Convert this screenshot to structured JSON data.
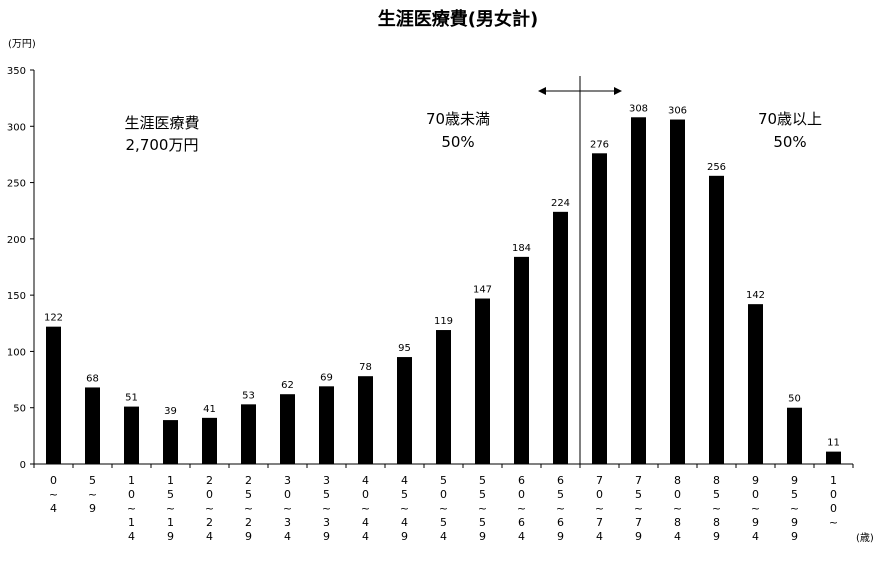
{
  "chart_data": {
    "type": "bar",
    "title": "生涯医療費(男女計)",
    "y_unit": "(万円)",
    "x_unit": "(歳)",
    "ylim": [
      0,
      350
    ],
    "yticks": [
      0,
      50,
      100,
      150,
      200,
      250,
      300,
      350
    ],
    "grid": false,
    "bar_color": "#000000",
    "categories": [
      "0~4",
      "5~9",
      "10~14",
      "15~19",
      "20~24",
      "25~29",
      "30~34",
      "35~39",
      "40~44",
      "45~49",
      "50~54",
      "55~59",
      "60~64",
      "65~69",
      "70~74",
      "75~79",
      "80~84",
      "85~89",
      "90~94",
      "95~99",
      "100~"
    ],
    "category_label_chars": [
      [
        "0",
        "~",
        "4"
      ],
      [
        "5",
        "~",
        "9"
      ],
      [
        "1",
        "0",
        "~",
        "1",
        "4"
      ],
      [
        "1",
        "5",
        "~",
        "1",
        "9"
      ],
      [
        "2",
        "0",
        "~",
        "2",
        "4"
      ],
      [
        "2",
        "5",
        "~",
        "2",
        "9"
      ],
      [
        "3",
        "0",
        "~",
        "3",
        "4"
      ],
      [
        "3",
        "5",
        "~",
        "3",
        "9"
      ],
      [
        "4",
        "0",
        "~",
        "4",
        "4"
      ],
      [
        "4",
        "5",
        "~",
        "4",
        "9"
      ],
      [
        "5",
        "0",
        "~",
        "5",
        "4"
      ],
      [
        "5",
        "5",
        "~",
        "5",
        "9"
      ],
      [
        "6",
        "0",
        "~",
        "6",
        "4"
      ],
      [
        "6",
        "5",
        "~",
        "6",
        "9"
      ],
      [
        "7",
        "0",
        "~",
        "7",
        "4"
      ],
      [
        "7",
        "5",
        "~",
        "7",
        "9"
      ],
      [
        "8",
        "0",
        "~",
        "8",
        "4"
      ],
      [
        "8",
        "5",
        "~",
        "8",
        "9"
      ],
      [
        "9",
        "0",
        "~",
        "9",
        "4"
      ],
      [
        "9",
        "5",
        "~",
        "9",
        "9"
      ],
      [
        "1",
        "0",
        "0",
        "~"
      ]
    ],
    "values": [
      122,
      68,
      51,
      39,
      41,
      53,
      62,
      69,
      78,
      95,
      119,
      147,
      184,
      224,
      276,
      308,
      306,
      256,
      142,
      50,
      11
    ],
    "annotations": {
      "total_label": "生涯医療費",
      "total_value": "2,700万円",
      "under70_label": "70歳未満",
      "under70_share": "50%",
      "over70_label": "70歳以上",
      "over70_share": "50%"
    },
    "divider_between_categories": [
      "65~69",
      "70~74"
    ]
  }
}
